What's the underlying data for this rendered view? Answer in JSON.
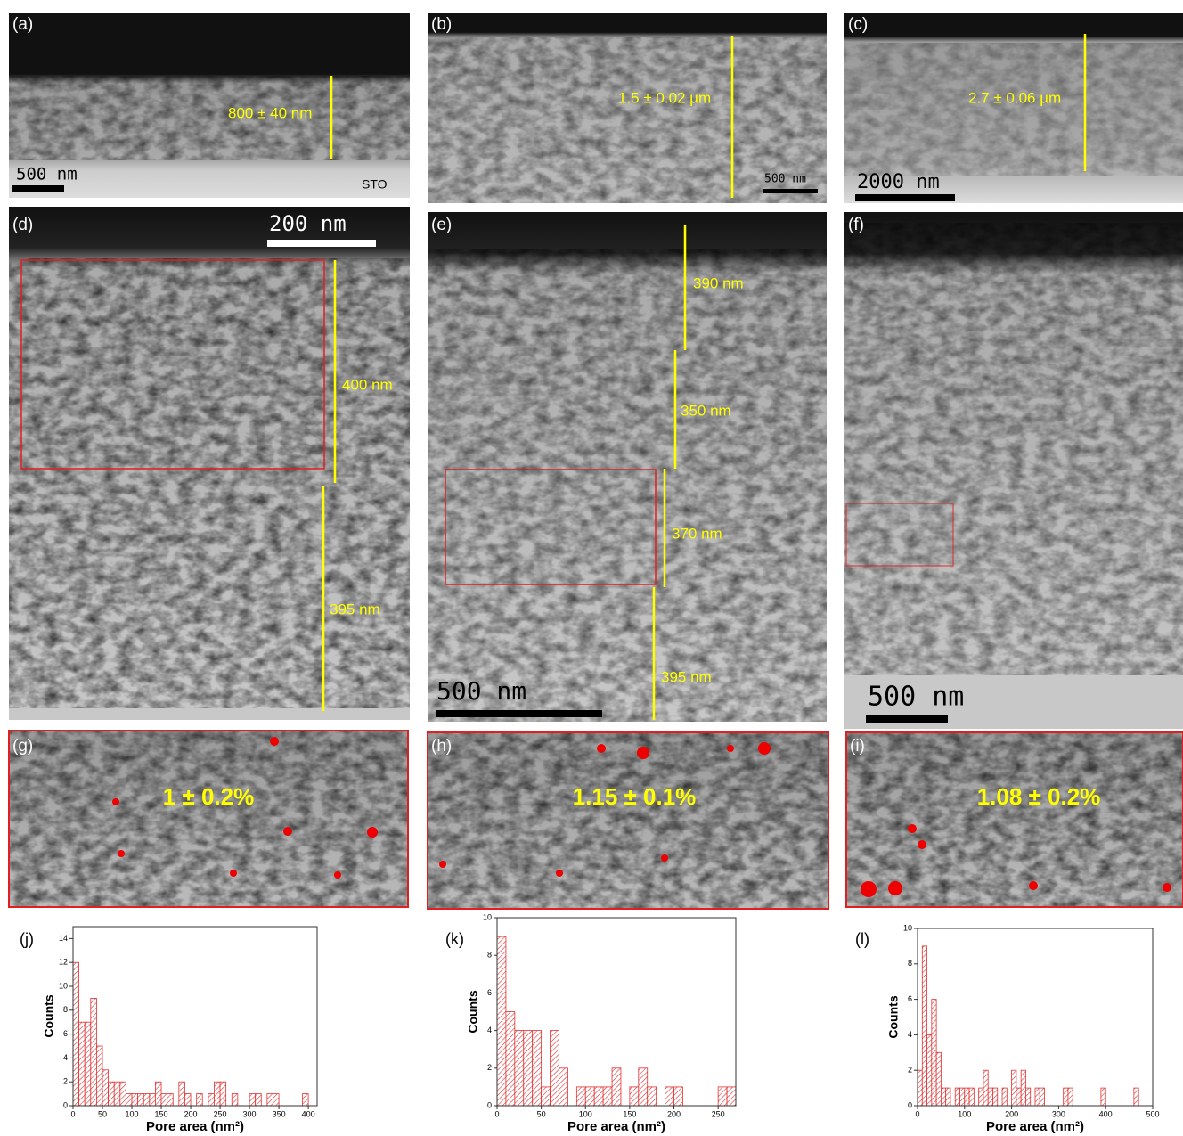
{
  "panels": [
    {
      "label": "(a)",
      "scale_bar": "500 nm",
      "notes": [
        "800 ± 40 nm",
        "STO"
      ]
    },
    {
      "label": "(b)",
      "scale_bar": "500 nm",
      "notes": [
        "1.5 ± 0.02 µm"
      ]
    },
    {
      "label": "(c)",
      "scale_bar": "2000 nm",
      "notes": [
        "2.7 ± 0.06 µm"
      ]
    },
    {
      "label": "(d)",
      "scale_bar": "200 nm",
      "notes": [
        "400 nm",
        "395 nm"
      ]
    },
    {
      "label": "(e)",
      "scale_bar": "500 nm",
      "notes": [
        "390 nm",
        "350 nm",
        "370 nm",
        "395 nm"
      ]
    },
    {
      "label": "(f)",
      "scale_bar": "500 nm"
    },
    {
      "label": "(g)",
      "notes": [
        "1 ± 0.2%"
      ]
    },
    {
      "label": "(h)",
      "notes": [
        "1.15 ± 0.1%"
      ]
    },
    {
      "label": "(i)",
      "notes": [
        "1.08 ± 0.2%"
      ]
    }
  ],
  "chart_data": [
    {
      "type": "histogram",
      "panel_label": "(j)",
      "xlabel": "Pore area (nm²)",
      "ylabel": "Counts",
      "color": "#e03030",
      "bins": [
        0,
        10,
        20,
        30,
        40,
        50,
        60,
        70,
        80,
        90,
        100,
        110,
        120,
        130,
        140,
        150,
        160,
        170,
        180,
        190,
        200,
        210,
        220,
        230,
        240,
        250,
        260,
        270,
        280,
        290,
        300,
        310,
        320,
        330,
        340,
        350,
        360,
        370,
        380,
        390,
        400,
        410
      ],
      "counts": [
        12,
        7,
        7,
        9,
        5,
        3,
        2,
        2,
        2,
        1,
        1,
        1,
        1,
        1,
        2,
        1,
        1,
        0,
        2,
        1,
        0,
        1,
        0,
        1,
        2,
        2,
        0,
        1,
        0,
        0,
        1,
        1,
        0,
        1,
        1,
        0,
        0,
        0,
        0,
        1,
        0
      ],
      "xlim": [
        0,
        415
      ],
      "ylim": [
        0,
        15
      ],
      "xticks": [
        0,
        50,
        100,
        150,
        200,
        250,
        300,
        350,
        400
      ],
      "yticks": [
        0,
        2,
        4,
        6,
        8,
        10,
        12,
        14
      ]
    },
    {
      "type": "histogram",
      "panel_label": "(k)",
      "xlabel": "Pore area (nm²)",
      "ylabel": "Counts",
      "color": "#e03030",
      "bins": [
        0,
        10,
        20,
        30,
        40,
        50,
        60,
        70,
        80,
        90,
        100,
        110,
        120,
        130,
        140,
        150,
        160,
        170,
        180,
        190,
        200,
        210,
        220,
        230,
        240,
        250,
        260,
        270
      ],
      "counts": [
        9,
        5,
        4,
        4,
        4,
        1,
        4,
        2,
        0,
        1,
        1,
        1,
        1,
        2,
        0,
        1,
        2,
        1,
        0,
        1,
        1,
        0,
        0,
        0,
        0,
        1,
        1
      ],
      "xlim": [
        0,
        270
      ],
      "ylim": [
        0,
        10
      ],
      "xticks": [
        0,
        50,
        100,
        150,
        200,
        250
      ],
      "yticks": [
        0,
        2,
        4,
        6,
        8,
        10
      ]
    },
    {
      "type": "histogram",
      "panel_label": "(l)",
      "xlabel": "Pore area (nm²)",
      "ylabel": "Counts",
      "color": "#e03030",
      "bins": [
        0,
        10,
        20,
        30,
        40,
        50,
        60,
        70,
        80,
        90,
        100,
        110,
        120,
        130,
        140,
        150,
        160,
        170,
        180,
        190,
        200,
        210,
        220,
        230,
        240,
        250,
        260,
        270,
        280,
        290,
        300,
        310,
        320,
        330,
        340,
        350,
        360,
        370,
        380,
        390,
        400,
        410,
        420,
        430,
        440,
        450,
        460,
        470
      ],
      "counts": [
        2,
        9,
        4,
        6,
        3,
        1,
        1,
        0,
        1,
        1,
        1,
        1,
        0,
        1,
        2,
        1,
        1,
        0,
        1,
        0,
        2,
        1,
        2,
        1,
        0,
        1,
        1,
        0,
        0,
        0,
        0,
        1,
        1,
        0,
        0,
        0,
        0,
        0,
        0,
        1,
        0,
        0,
        0,
        0,
        0,
        0,
        1
      ],
      "xlim": [
        0,
        500
      ],
      "ylim": [
        0,
        10
      ],
      "xticks": [
        0,
        100,
        200,
        300,
        400,
        500
      ],
      "yticks": [
        0,
        2,
        4,
        6,
        8,
        10
      ]
    }
  ]
}
